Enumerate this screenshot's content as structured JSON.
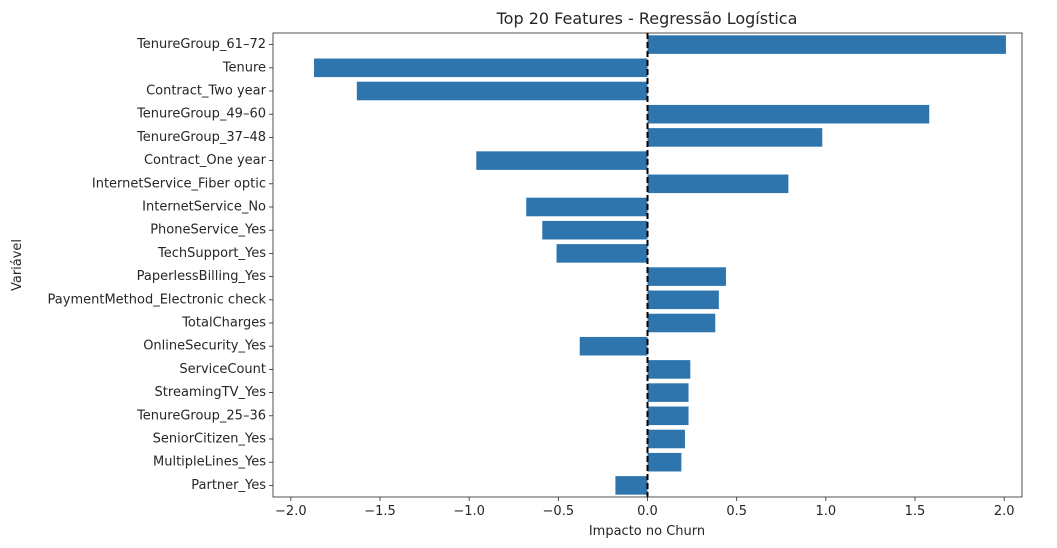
{
  "chart_data": {
    "type": "bar",
    "orientation": "horizontal",
    "title": "Top 20 Features - Regressão Logística",
    "xlabel": "Impacto no Churn",
    "ylabel": "Variável",
    "xlim": [
      -2.1,
      2.1
    ],
    "x_ticks": [
      -2.0,
      -1.5,
      -1.0,
      -0.5,
      0.0,
      0.5,
      1.0,
      1.5,
      2.0
    ],
    "x_tick_labels": [
      "−2.0",
      "−1.5",
      "−1.0",
      "−0.5",
      "0.0",
      "0.5",
      "1.0",
      "1.5",
      "2.0"
    ],
    "reference_line": 0,
    "grid": false,
    "bar_color": "#2e75ad",
    "reference_line_color": "#000000",
    "categories": [
      "TenureGroup_61–72",
      "Tenure",
      "Contract_Two year",
      "TenureGroup_49–60",
      "TenureGroup_37–48",
      "Contract_One year",
      "InternetService_Fiber optic",
      "InternetService_No",
      "PhoneService_Yes",
      "TechSupport_Yes",
      "PaperlessBilling_Yes",
      "PaymentMethod_Electronic check",
      "TotalCharges",
      "OnlineSecurity_Yes",
      "ServiceCount",
      "StreamingTV_Yes",
      "TenureGroup_25–36",
      "SeniorCitizen_Yes",
      "MultipleLines_Yes",
      "Partner_Yes"
    ],
    "values": [
      2.01,
      -1.87,
      -1.63,
      1.58,
      0.98,
      -0.96,
      0.79,
      -0.68,
      -0.59,
      -0.51,
      0.44,
      0.4,
      0.38,
      -0.38,
      0.24,
      0.23,
      0.23,
      0.21,
      0.19,
      -0.18
    ]
  }
}
